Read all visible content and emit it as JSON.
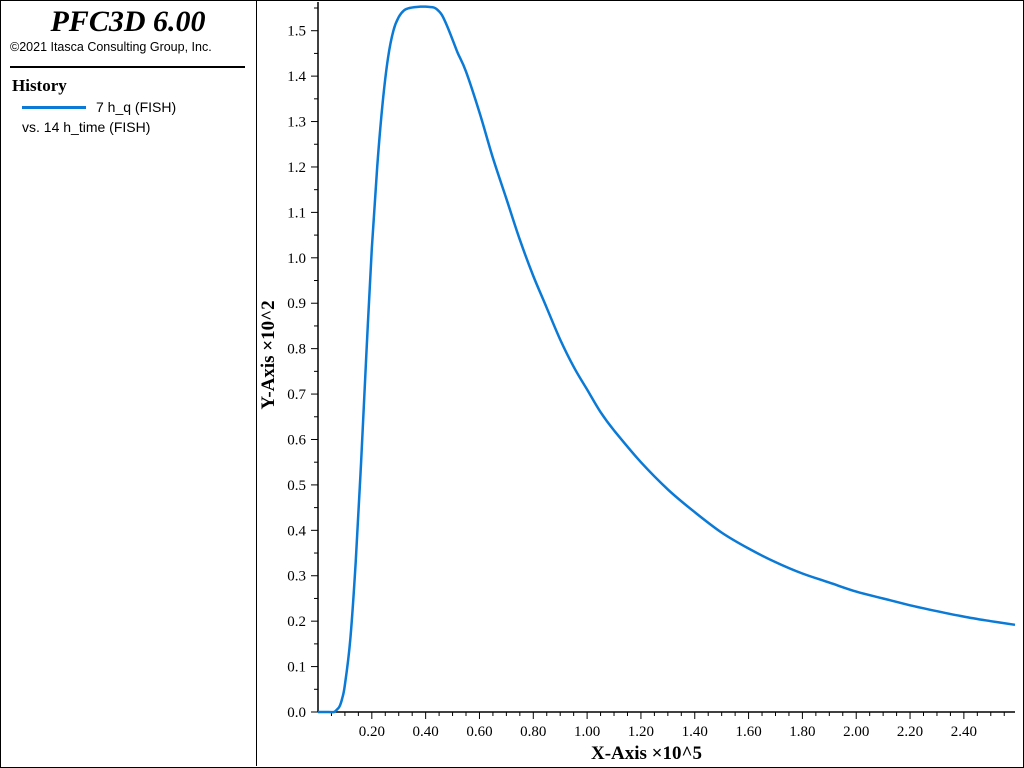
{
  "app": {
    "title": "PFC3D 6.00",
    "copyright": "©2021 Itasca Consulting Group, Inc."
  },
  "panel": {
    "heading": "History",
    "legend_series": "7 h_q (FISH)",
    "legend_vs": "vs. 14 h_time (FISH)"
  },
  "colors": {
    "series": "#0a7ad6",
    "axis": "#000000",
    "background": "#ffffff"
  },
  "chart_data": {
    "type": "line",
    "xlabel": "X-Axis ×10^5",
    "ylabel": "Y-Axis ×10^2",
    "xlim": [
      0.0,
      2.59
    ],
    "ylim": [
      0.0,
      1.55
    ],
    "grid": false,
    "legend_placement": "left-panel",
    "x_ticks": [
      "0.20",
      "0.40",
      "0.60",
      "0.80",
      "1.00",
      "1.20",
      "1.40",
      "1.60",
      "1.80",
      "2.00",
      "2.20",
      "2.40"
    ],
    "y_ticks": [
      "0.0",
      "0.1",
      "0.2",
      "0.3",
      "0.4",
      "0.5",
      "0.6",
      "0.7",
      "0.8",
      "0.9",
      "1.0",
      "1.1",
      "1.2",
      "1.3",
      "1.4",
      "1.5"
    ],
    "series": [
      {
        "name": "7 h_q (FISH)",
        "x": [
          0.0,
          0.04,
          0.06,
          0.07,
          0.08,
          0.09,
          0.1,
          0.12,
          0.14,
          0.16,
          0.18,
          0.2,
          0.22,
          0.24,
          0.26,
          0.28,
          0.3,
          0.32,
          0.34,
          0.36,
          0.38,
          0.4,
          0.42,
          0.43,
          0.44,
          0.46,
          0.48,
          0.5,
          0.52,
          0.55,
          0.6,
          0.65,
          0.7,
          0.75,
          0.8,
          0.85,
          0.9,
          0.95,
          1.0,
          1.05,
          1.1,
          1.2,
          1.3,
          1.4,
          1.5,
          1.6,
          1.7,
          1.8,
          1.9,
          2.0,
          2.1,
          2.2,
          2.3,
          2.4,
          2.5,
          2.59
        ],
        "y": [
          0.0,
          0.0,
          0.0,
          0.005,
          0.012,
          0.03,
          0.06,
          0.16,
          0.33,
          0.55,
          0.79,
          1.02,
          1.2,
          1.34,
          1.44,
          1.5,
          1.53,
          1.545,
          1.55,
          1.552,
          1.553,
          1.553,
          1.552,
          1.551,
          1.548,
          1.535,
          1.51,
          1.48,
          1.45,
          1.41,
          1.32,
          1.22,
          1.13,
          1.04,
          0.96,
          0.89,
          0.82,
          0.76,
          0.71,
          0.66,
          0.62,
          0.55,
          0.49,
          0.44,
          0.395,
          0.36,
          0.33,
          0.305,
          0.285,
          0.265,
          0.25,
          0.235,
          0.222,
          0.21,
          0.2,
          0.192
        ]
      }
    ]
  }
}
